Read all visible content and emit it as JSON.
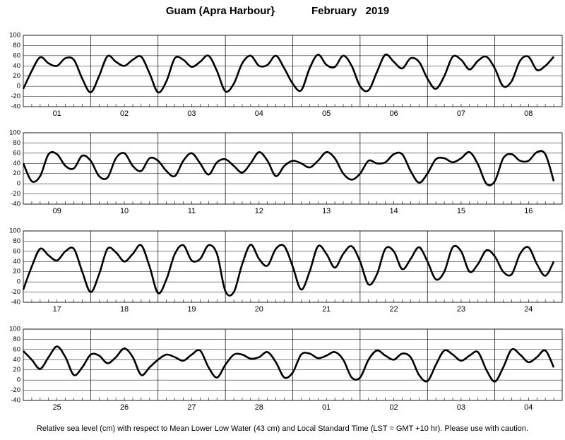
{
  "title": "Guam (Apra Harbour}",
  "subtitle": "February   2019",
  "footnote": "Relative sea level (cm) with respect to Mean Lower Low Water (43 cm) and Local Standard Time (LST = GMT +10 hr). Please use with caution.",
  "chart_data": [
    {
      "type": "line",
      "color": "#000000",
      "grid": true,
      "ylim": [
        -40,
        100
      ],
      "yticks": [
        -40,
        -20,
        0,
        20,
        40,
        60,
        80,
        100
      ],
      "categories": [
        "01",
        "02",
        "03",
        "04",
        "05",
        "06",
        "07",
        "08"
      ],
      "values": [
        [
          -5,
          30,
          57,
          45,
          40,
          55,
          52,
          15
        ],
        [
          -12,
          20,
          59,
          48,
          40,
          52,
          58,
          25
        ],
        [
          -12,
          10,
          55,
          52,
          38,
          48,
          60,
          30
        ],
        [
          -10,
          5,
          45,
          60,
          40,
          42,
          60,
          35
        ],
        [
          5,
          -8,
          35,
          62,
          42,
          38,
          60,
          40
        ],
        [
          0,
          -8,
          28,
          62,
          48,
          35,
          55,
          48
        ],
        [
          15,
          -5,
          20,
          58,
          52,
          33,
          50,
          58
        ],
        [
          35,
          0,
          10,
          50,
          58,
          32,
          40,
          58
        ]
      ]
    },
    {
      "type": "line",
      "color": "#000000",
      "grid": true,
      "ylim": [
        -40,
        100
      ],
      "yticks": [
        -40,
        -20,
        0,
        20,
        40,
        60,
        80,
        100
      ],
      "categories": [
        "09",
        "10",
        "11",
        "12",
        "13",
        "14",
        "15",
        "16"
      ],
      "values": [
        [
          40,
          5,
          15,
          58,
          58,
          35,
          30,
          55
        ],
        [
          45,
          15,
          12,
          50,
          60,
          35,
          25,
          50
        ],
        [
          45,
          25,
          15,
          45,
          60,
          40,
          18,
          42
        ],
        [
          48,
          35,
          22,
          40,
          62,
          45,
          15,
          35
        ],
        [
          45,
          40,
          32,
          45,
          62,
          50,
          20,
          8
        ],
        [
          20,
          45,
          40,
          42,
          58,
          58,
          25,
          2
        ],
        [
          20,
          48,
          50,
          42,
          50,
          62,
          38,
          0
        ],
        [
          5,
          50,
          58,
          45,
          45,
          62,
          58,
          5
        ]
      ]
    },
    {
      "type": "line",
      "color": "#000000",
      "grid": true,
      "ylim": [
        -40,
        100
      ],
      "yticks": [
        -40,
        -20,
        0,
        20,
        40,
        60,
        80,
        100
      ],
      "categories": [
        "17",
        "18",
        "19",
        "20",
        "21",
        "22",
        "23",
        "24"
      ],
      "values": [
        [
          -15,
          30,
          65,
          52,
          42,
          60,
          65,
          20
        ],
        [
          -20,
          15,
          65,
          58,
          40,
          55,
          72,
          30
        ],
        [
          -22,
          5,
          55,
          72,
          42,
          45,
          72,
          55
        ],
        [
          -18,
          -20,
          35,
          73,
          45,
          32,
          65,
          70
        ],
        [
          30,
          -15,
          20,
          70,
          55,
          28,
          55,
          70
        ],
        [
          40,
          -5,
          15,
          65,
          60,
          25,
          45,
          68
        ],
        [
          40,
          5,
          20,
          68,
          60,
          20,
          35,
          62
        ],
        [
          50,
          20,
          15,
          55,
          68,
          35,
          12,
          40
        ]
      ]
    },
    {
      "type": "line",
      "color": "#000000",
      "grid": true,
      "ylim": [
        -40,
        100
      ],
      "yticks": [
        -40,
        -20,
        0,
        20,
        40,
        60,
        80,
        100
      ],
      "categories": [
        "25",
        "26",
        "27",
        "28",
        "01",
        "02",
        "03",
        "04"
      ],
      "values": [
        [
          57,
          40,
          22,
          45,
          66,
          45,
          10,
          25
        ],
        [
          50,
          48,
          33,
          45,
          62,
          45,
          10,
          25
        ],
        [
          40,
          50,
          45,
          38,
          50,
          58,
          25,
          5
        ],
        [
          30,
          50,
          50,
          42,
          45,
          55,
          35,
          5
        ],
        [
          15,
          50,
          52,
          43,
          48,
          55,
          40,
          5
        ],
        [
          5,
          40,
          58,
          48,
          40,
          52,
          45,
          10
        ],
        [
          -2,
          30,
          58,
          50,
          38,
          48,
          55,
          20
        ],
        [
          -3,
          25,
          60,
          50,
          35,
          45,
          58,
          25
        ]
      ]
    }
  ]
}
